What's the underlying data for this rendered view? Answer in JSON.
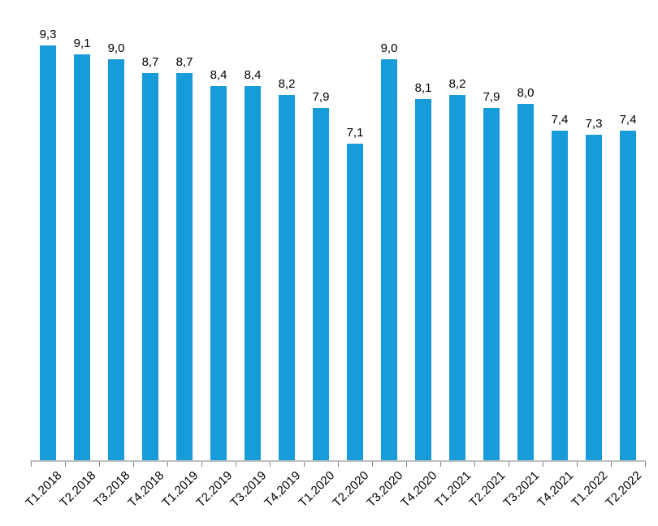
{
  "chart_data": {
    "type": "bar",
    "title": "",
    "categories": [
      "T1.2018",
      "T2.2018",
      "T3.2018",
      "T4.2018",
      "T1.2019",
      "T2.2019",
      "T3.2019",
      "T4.2019",
      "T1.2020",
      "T2.2020",
      "T3.2020",
      "T4.2020",
      "T1.2021",
      "T2.2021",
      "T3.2021",
      "T4.2021",
      "T1.2022",
      "T2.2022"
    ],
    "values": [
      9.3,
      9.1,
      9.0,
      8.7,
      8.7,
      8.4,
      8.4,
      8.2,
      7.9,
      7.1,
      9.0,
      8.1,
      8.2,
      7.9,
      8.0,
      7.4,
      7.3,
      7.4
    ],
    "value_labels": [
      "9,3",
      "9,1",
      "9,0",
      "8,7",
      "8,7",
      "8,4",
      "8,4",
      "8,2",
      "7,9",
      "7,1",
      "9,0",
      "8,1",
      "8,2",
      "7,9",
      "8,0",
      "7,4",
      "7,3",
      "7,4"
    ],
    "xlabel": "",
    "ylabel": "",
    "ylim": [
      0,
      10
    ],
    "grid": false,
    "y_axis_visible": false,
    "legend": null,
    "data_labels_visible": true,
    "decimal_separator": ",",
    "colors": {
      "bar": "#189bd9",
      "axis_line": "#bfbfbf",
      "tick": "#808080",
      "text": "#000000"
    }
  }
}
